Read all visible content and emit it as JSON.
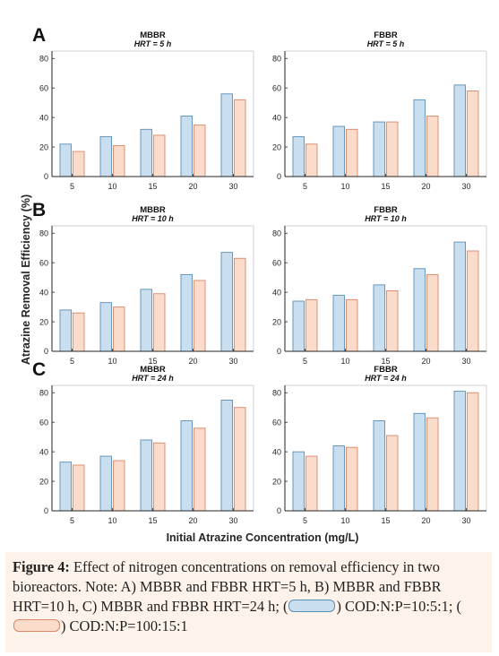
{
  "figure": {
    "y_label": "Atrazine Removal Efficiency (%)",
    "x_label": "Initial Atrazine Concentration (mg/L)"
  },
  "colors": {
    "series1_fill": "#c9dff0",
    "series1_stroke": "#5a8fb8",
    "series2_fill": "#fbdccb",
    "series2_stroke": "#d9866a",
    "axis": "#262626"
  },
  "caption": {
    "label": "Figure 4:",
    "text1": " Effect of nitrogen concentrations on removal efficiency in two bioreactors. Note: A) MBBR and FBBR HRT=5 h, B) MBBR and FBBR HRT=10 h, C) MBBR and FBBR HRT=24 h; (",
    "legend1": ") COD:N:P=10:5:1;",
    "legend2": ") COD:N:P=100:15:1"
  },
  "chart_data": [
    {
      "type": "bar",
      "row_label": "A",
      "title": "MBBR",
      "subtitle": "HRT = 5 h",
      "categories": [
        "5",
        "10",
        "15",
        "20",
        "30"
      ],
      "series": [
        {
          "values": [
            22,
            27,
            32,
            41,
            56
          ]
        },
        {
          "values": [
            17,
            21,
            28,
            35,
            52
          ]
        }
      ],
      "ylim": [
        0,
        85
      ],
      "yticks": [
        0,
        20,
        40,
        60,
        80
      ]
    },
    {
      "type": "bar",
      "row_label": "",
      "title": "FBBR",
      "subtitle": "HRT = 5 h",
      "categories": [
        "5",
        "10",
        "15",
        "20",
        "30"
      ],
      "series": [
        {
          "values": [
            27,
            34,
            37,
            52,
            62
          ]
        },
        {
          "values": [
            22,
            32,
            37,
            41,
            58
          ]
        }
      ],
      "ylim": [
        0,
        85
      ],
      "yticks": [
        0,
        20,
        40,
        60,
        80
      ]
    },
    {
      "type": "bar",
      "row_label": "B",
      "title": "MBBR",
      "subtitle": "HRT = 10 h",
      "categories": [
        "5",
        "10",
        "15",
        "20",
        "30"
      ],
      "series": [
        {
          "values": [
            28,
            33,
            42,
            52,
            67
          ]
        },
        {
          "values": [
            26,
            30,
            39,
            48,
            63
          ]
        }
      ],
      "ylim": [
        0,
        85
      ],
      "yticks": [
        0,
        20,
        40,
        60,
        80
      ]
    },
    {
      "type": "bar",
      "row_label": "",
      "title": "FBBR",
      "subtitle": "HRT = 10 h",
      "categories": [
        "5",
        "10",
        "15",
        "20",
        "30"
      ],
      "series": [
        {
          "values": [
            34,
            38,
            45,
            56,
            74
          ]
        },
        {
          "values": [
            35,
            35,
            41,
            52,
            68
          ]
        }
      ],
      "ylim": [
        0,
        85
      ],
      "yticks": [
        0,
        20,
        40,
        60,
        80
      ]
    },
    {
      "type": "bar",
      "row_label": "C",
      "title": "MBBR",
      "subtitle": "HRT = 24 h",
      "categories": [
        "5",
        "10",
        "15",
        "20",
        "30"
      ],
      "series": [
        {
          "values": [
            33,
            37,
            48,
            61,
            75
          ]
        },
        {
          "values": [
            31,
            34,
            46,
            56,
            70
          ]
        }
      ],
      "ylim": [
        0,
        85
      ],
      "yticks": [
        0,
        20,
        40,
        60,
        80
      ]
    },
    {
      "type": "bar",
      "row_label": "",
      "title": "FBBR",
      "subtitle": "HRT = 24 h",
      "categories": [
        "5",
        "10",
        "15",
        "20",
        "30"
      ],
      "series": [
        {
          "values": [
            40,
            44,
            61,
            66,
            81
          ]
        },
        {
          "values": [
            37,
            43,
            51,
            63,
            80
          ]
        }
      ],
      "ylim": [
        0,
        85
      ],
      "yticks": [
        0,
        20,
        40,
        60,
        80
      ]
    }
  ]
}
